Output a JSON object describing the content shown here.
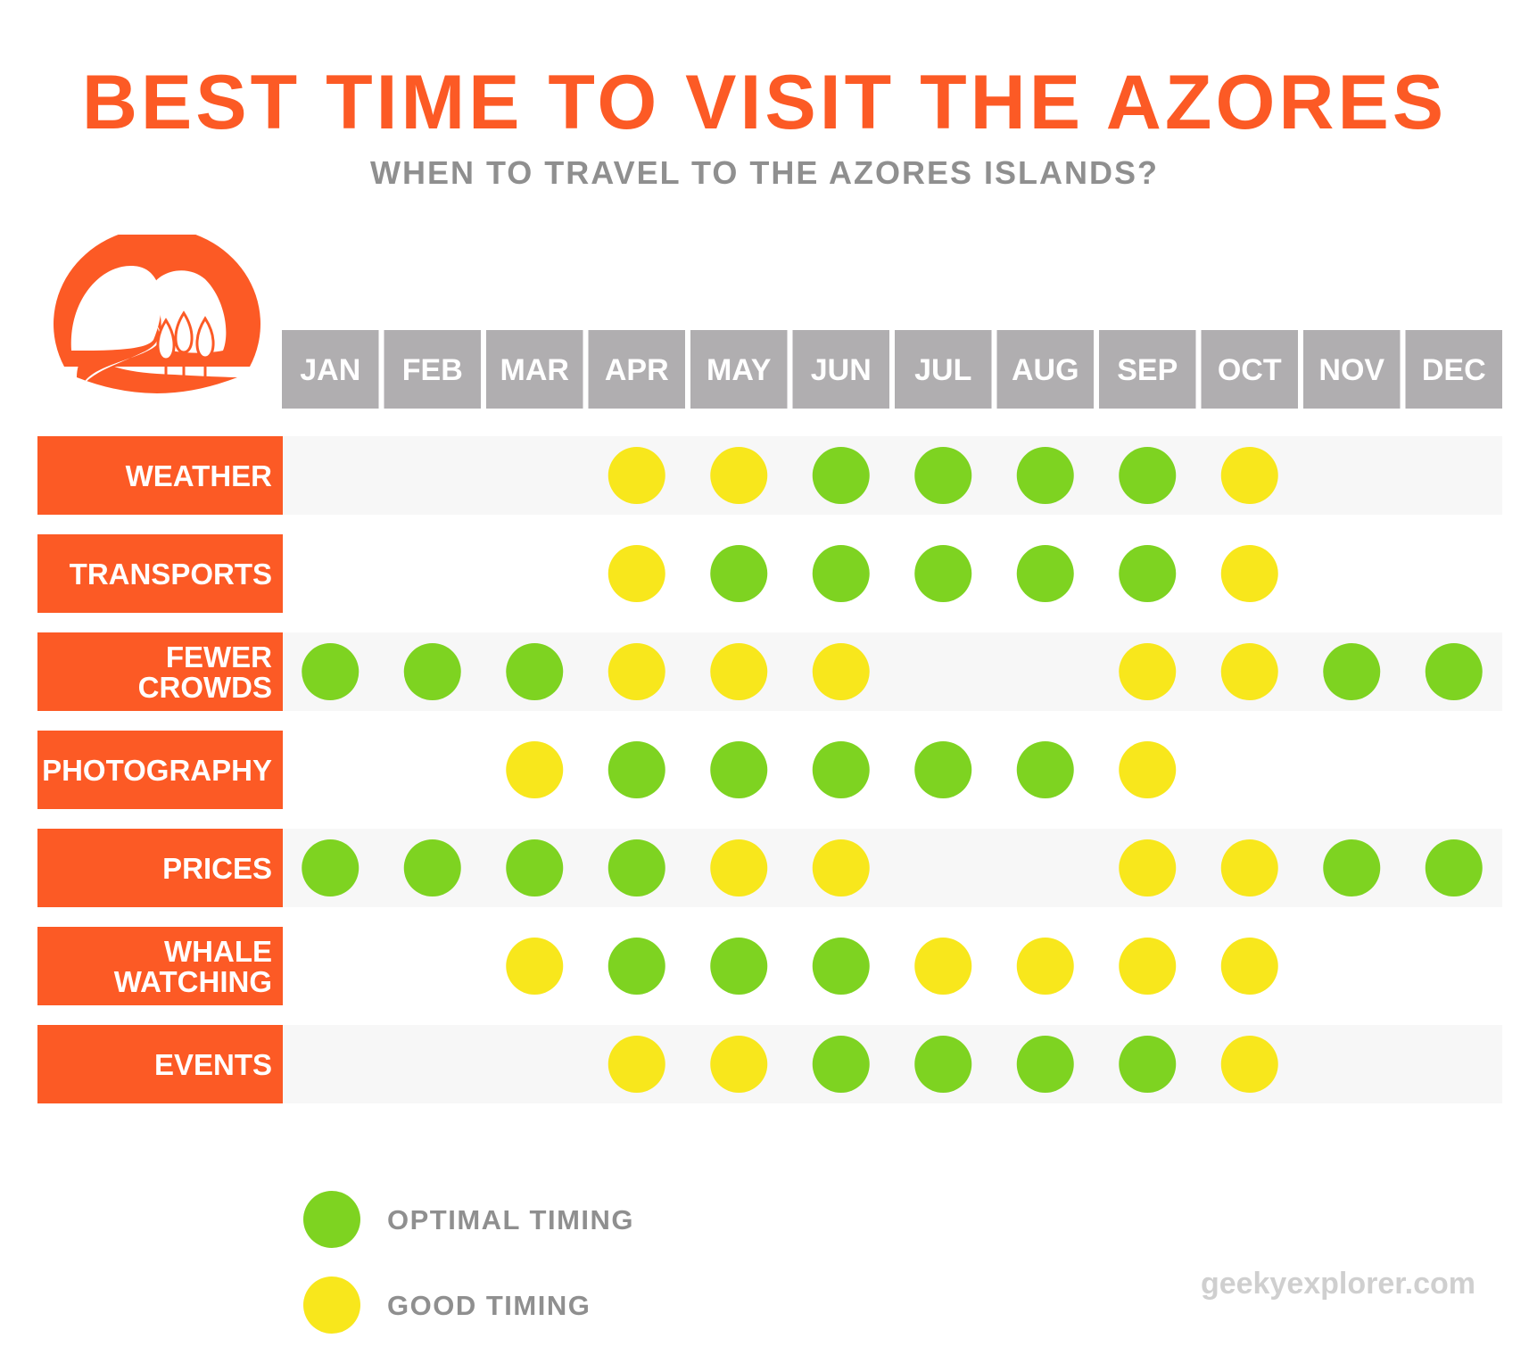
{
  "header": {
    "title": "BEST TIME TO VISIT THE AZORES",
    "subtitle": "WHEN TO TRAVEL TO THE AZORES ISLANDS?"
  },
  "colors": {
    "brand_orange": "#fc5a25",
    "optimal_green": "#7ed321",
    "good_yellow": "#f8e71c",
    "month_header_gray": "#b0aeb0",
    "row_stripe": "#f7f7f7",
    "text_gray": "#8f8f8f"
  },
  "logo_icon": "mountain-road-trees-logo-icon",
  "chart_data": {
    "type": "table",
    "months": [
      "JAN",
      "FEB",
      "MAR",
      "APR",
      "MAY",
      "JUN",
      "JUL",
      "AUG",
      "SEP",
      "OCT",
      "NOV",
      "DEC"
    ],
    "rating_scale": {
      "2": "OPTIMAL TIMING",
      "1": "GOOD TIMING",
      "0": ""
    },
    "categories": [
      {
        "label_lines": [
          "WEATHER"
        ],
        "ratings": [
          0,
          0,
          0,
          1,
          1,
          2,
          2,
          2,
          2,
          1,
          0,
          0
        ]
      },
      {
        "label_lines": [
          "TRANSPORTS"
        ],
        "ratings": [
          0,
          0,
          0,
          1,
          2,
          2,
          2,
          2,
          2,
          1,
          0,
          0
        ]
      },
      {
        "label_lines": [
          "FEWER",
          "CROWDS"
        ],
        "ratings": [
          2,
          2,
          2,
          1,
          1,
          1,
          0,
          0,
          1,
          1,
          2,
          2
        ]
      },
      {
        "label_lines": [
          "PHOTOGRAPHY"
        ],
        "ratings": [
          0,
          0,
          1,
          2,
          2,
          2,
          2,
          2,
          1,
          0,
          0,
          0
        ]
      },
      {
        "label_lines": [
          "PRICES"
        ],
        "ratings": [
          2,
          2,
          2,
          2,
          1,
          1,
          0,
          0,
          1,
          1,
          2,
          2
        ]
      },
      {
        "label_lines": [
          "WHALE",
          "WATCHING"
        ],
        "ratings": [
          0,
          0,
          1,
          2,
          2,
          2,
          1,
          1,
          1,
          1,
          0,
          0
        ]
      },
      {
        "label_lines": [
          "EVENTS"
        ],
        "ratings": [
          0,
          0,
          0,
          1,
          1,
          2,
          2,
          2,
          2,
          1,
          0,
          0
        ]
      }
    ]
  },
  "legend": [
    {
      "label": "OPTIMAL TIMING",
      "color": "#7ed321"
    },
    {
      "label": "GOOD TIMING",
      "color": "#f8e71c"
    }
  ],
  "footer": {
    "website": "geekyexplorer.com"
  }
}
